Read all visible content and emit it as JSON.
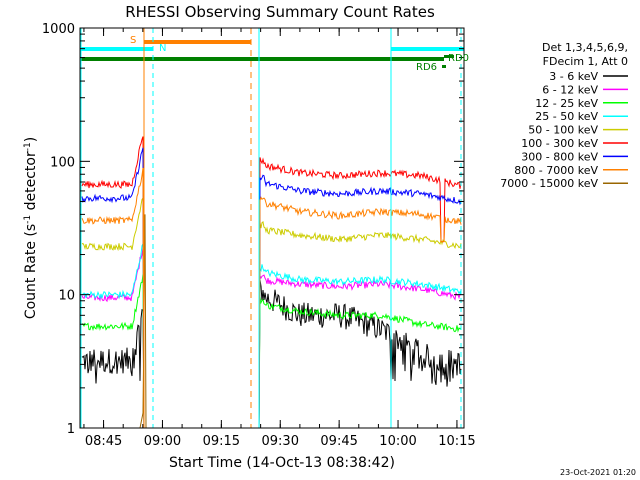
{
  "chart_data": {
    "type": "line",
    "title": "RHESSI Observing Summary Count Rates",
    "xlabel": "Start Time (14-Oct-13 08:38:42)",
    "ylabel_main": "Count Rate (s",
    "ylabel_sup1": "-1",
    "ylabel_mid": " detector",
    "ylabel_sup2": "-1",
    "ylabel_end": ")",
    "yscale": "log",
    "ylim": [
      1,
      1000
    ],
    "xlim_minutes": [
      8.65,
      10.28
    ],
    "xtick_labels": [
      "08:45",
      "09:00",
      "09:15",
      "09:30",
      "09:45",
      "10:00",
      "10:15"
    ],
    "xtick_values": [
      8.75,
      9.0,
      9.25,
      9.5,
      9.75,
      10.0,
      10.25
    ],
    "ytick_labels": [
      "1",
      "10",
      "100",
      "1000"
    ],
    "ytick_values": [
      1,
      10,
      100,
      1000
    ],
    "grid": false,
    "legend_header": [
      "Det 1,3,4,5,6,9,",
      "FDecim 1, Att 0"
    ],
    "legend_position": "right",
    "series": [
      {
        "name": "3 - 6 keV",
        "color": "#000000",
        "pre": 3.2,
        "post": [
          10,
          7,
          7,
          5.5,
          3.5,
          3
        ]
      },
      {
        "name": "6 - 12 keV",
        "color": "#ff00ff",
        "pre": 9.5,
        "post": [
          13,
          12,
          11.5,
          12,
          11,
          9.5
        ]
      },
      {
        "name": "12 - 25 keV",
        "color": "#00ff00",
        "pre": 5.8,
        "post": [
          8.5,
          7.5,
          7,
          7,
          6,
          5.5
        ]
      },
      {
        "name": "25 - 50 keV",
        "color": "#00ffff",
        "pre": 10,
        "post": [
          15,
          13,
          12.5,
          13,
          12,
          10.5
        ]
      },
      {
        "name": "50 - 100 keV",
        "color": "#cccc00",
        "pre": 23,
        "post": [
          31,
          28,
          26,
          28,
          26,
          23
        ]
      },
      {
        "name": "100 - 300 keV",
        "color": "#ff0000",
        "pre": 67,
        "post": [
          95,
          82,
          78,
          82,
          78,
          65
        ]
      },
      {
        "name": "300 - 800 keV",
        "color": "#0000ff",
        "pre": 53,
        "post": [
          70,
          60,
          57,
          60,
          57,
          50
        ]
      },
      {
        "name": "800 - 7000 keV",
        "color": "#ff8000",
        "pre": 36,
        "post": [
          50,
          42,
          39,
          42,
          40,
          35
        ]
      },
      {
        "name": "7000 - 15000 keV",
        "color": "#996600",
        "pre": 1,
        "post": [
          1,
          1,
          1,
          1,
          1,
          1
        ]
      }
    ],
    "annotations": {
      "saa_label": "S",
      "night_label": "N",
      "rd0_label": "RD0",
      "rd6_label": "RD6",
      "colors": {
        "saa": "#ff8000",
        "night": "#00ffff",
        "decimation": "#008000"
      }
    },
    "timestamp": "23-Oct-2021 01:20"
  }
}
